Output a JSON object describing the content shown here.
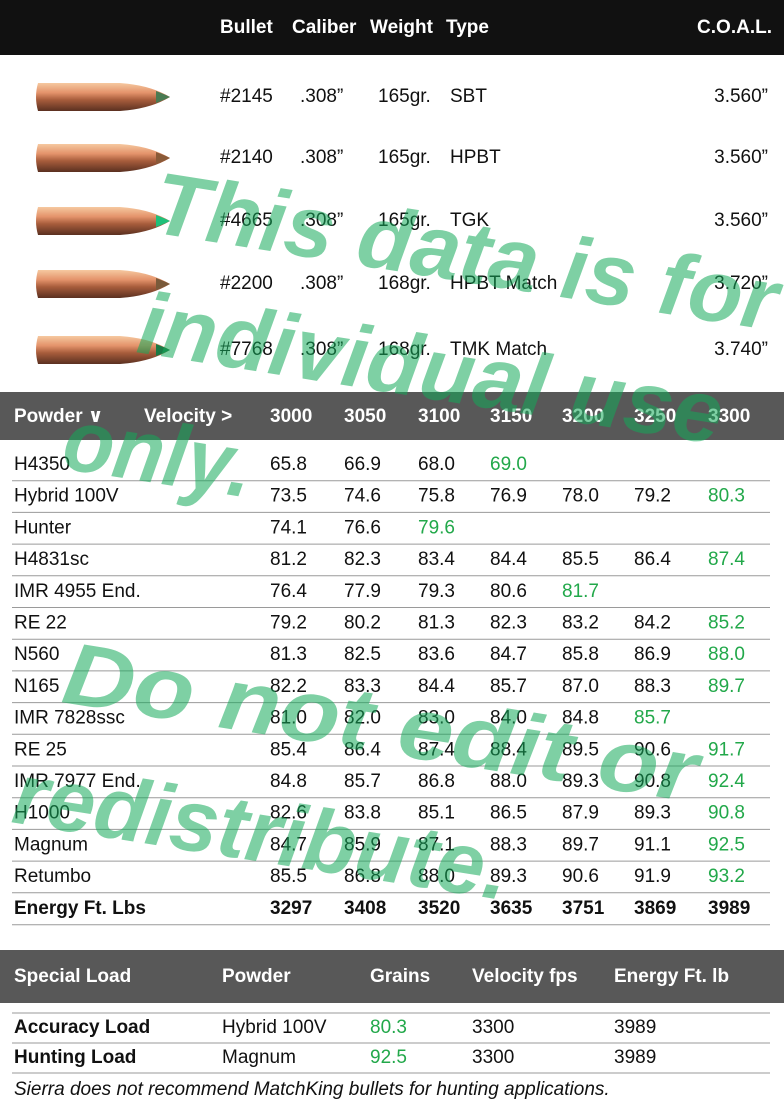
{
  "header": {
    "columns": [
      "Bullet",
      "Caliber",
      "Weight",
      "Type"
    ],
    "coal": "C.O.A.L."
  },
  "bullets": [
    {
      "number": "#2145",
      "caliber": ".308”",
      "weight": "165gr.",
      "type": "SBT",
      "coal": "3.560”",
      "tip_color": "#4a7a52"
    },
    {
      "number": "#2140",
      "caliber": ".308”",
      "weight": "165gr.",
      "type": "HPBT",
      "coal": "3.560”",
      "tip_color": "#8a5a38"
    },
    {
      "number": "#4665",
      "caliber": ".308”",
      "weight": "165gr.",
      "type": "TGK",
      "coal": "3.560”",
      "tip_color": "#1fc07a"
    },
    {
      "number": "#2200",
      "caliber": ".308”",
      "weight": "168gr.",
      "type": "HPBT Match",
      "coal": "3.720”",
      "tip_color": "#7a5a3a"
    },
    {
      "number": "#7768",
      "caliber": ".308”",
      "weight": "168gr.",
      "type": "TMK Match",
      "coal": "3.740”",
      "tip_color": "#1a7a45"
    }
  ],
  "loads": {
    "powder_label": "Powder ∨",
    "velocity_label": "Velocity >",
    "velocities": [
      3000,
      3050,
      3100,
      3150,
      3200,
      3250,
      3300
    ],
    "max_color": "#22a84a",
    "rows": [
      {
        "powder": "H4350",
        "values": [
          "65.8",
          "66.9",
          "68.0",
          "69.0",
          null,
          null,
          null
        ]
      },
      {
        "powder": "Hybrid 100V",
        "values": [
          "73.5",
          "74.6",
          "75.8",
          "76.9",
          "78.0",
          "79.2",
          "80.3"
        ]
      },
      {
        "powder": "Hunter",
        "values": [
          "74.1",
          "76.6",
          "79.6",
          null,
          null,
          null,
          null
        ]
      },
      {
        "powder": "H4831sc",
        "values": [
          "81.2",
          "82.3",
          "83.4",
          "84.4",
          "85.5",
          "86.4",
          "87.4"
        ]
      },
      {
        "powder": "IMR 4955 End.",
        "values": [
          "76.4",
          "77.9",
          "79.3",
          "80.6",
          "81.7",
          null,
          null
        ]
      },
      {
        "powder": "RE 22",
        "values": [
          "79.2",
          "80.2",
          "81.3",
          "82.3",
          "83.2",
          "84.2",
          "85.2"
        ]
      },
      {
        "powder": "N560",
        "values": [
          "81.3",
          "82.5",
          "83.6",
          "84.7",
          "85.8",
          "86.9",
          "88.0"
        ]
      },
      {
        "powder": "N165",
        "values": [
          "82.2",
          "83.3",
          "84.4",
          "85.7",
          "87.0",
          "88.3",
          "89.7"
        ]
      },
      {
        "powder": "IMR 7828ssc",
        "values": [
          "81.0",
          "82.0",
          "83.0",
          "84.0",
          "84.8",
          "85.7",
          null
        ]
      },
      {
        "powder": "RE 25",
        "values": [
          "85.4",
          "86.4",
          "87.4",
          "88.4",
          "89.5",
          "90.6",
          "91.7"
        ]
      },
      {
        "powder": "IMR 7977 End.",
        "values": [
          "84.8",
          "85.7",
          "86.8",
          "88.0",
          "89.3",
          "90.8",
          "92.4"
        ]
      },
      {
        "powder": "H1000",
        "values": [
          "82.6",
          "83.8",
          "85.1",
          "86.5",
          "87.9",
          "89.3",
          "90.8"
        ]
      },
      {
        "powder": "Magnum",
        "values": [
          "84.7",
          "85.9",
          "87.1",
          "88.3",
          "89.7",
          "91.1",
          "92.5"
        ]
      },
      {
        "powder": "Retumbo",
        "values": [
          "85.5",
          "86.8",
          "88.0",
          "89.3",
          "90.6",
          "91.9",
          "93.2"
        ]
      }
    ],
    "energy": {
      "label": "Energy Ft. Lbs",
      "values": [
        3297,
        3408,
        3520,
        3635,
        3751,
        3869,
        3989
      ]
    }
  },
  "special": {
    "columns": [
      "Special Load",
      "Powder",
      "Grains",
      "Velocity fps",
      "Energy Ft. lb"
    ],
    "rows": [
      [
        "Accuracy Load",
        "Hybrid 100V",
        "80.3",
        "3300",
        "3989"
      ],
      [
        "Hunting Load",
        "Magnum",
        "92.5",
        "3300",
        "3989"
      ]
    ],
    "footnote": "Sierra does not recommend MatchKing bullets for hunting applications."
  },
  "watermark": [
    "This data is for",
    "individual use",
    "only.",
    "Do not edit or",
    "redistribute."
  ]
}
